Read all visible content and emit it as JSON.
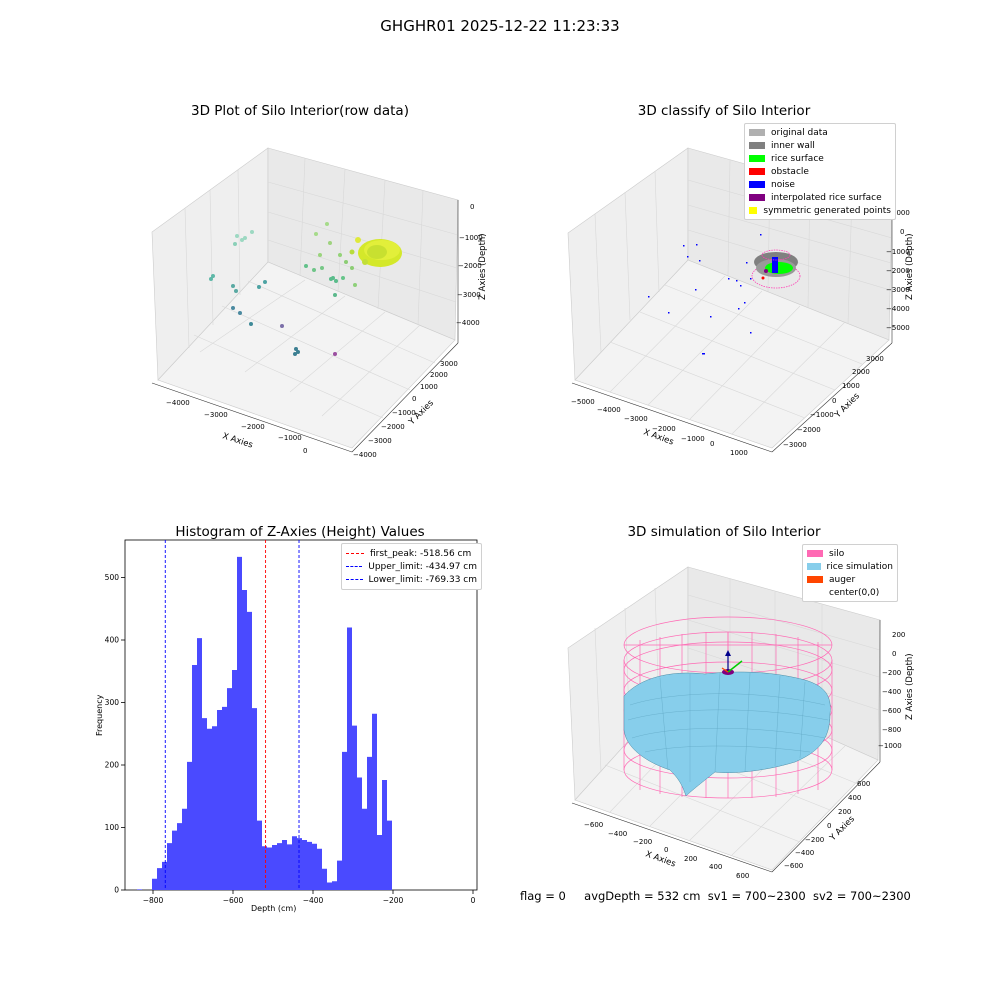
{
  "suptitle": "GHGHR01 2025-12-22 11:23:33",
  "plot1": {
    "title": "3D Plot of Silo Interior(row data)",
    "xlabel": "X Axies",
    "ylabel": "Y Axies",
    "zlabel": "Z Axies (Depth)",
    "xticks": [
      "−4000",
      "−3000",
      "−2000",
      "−1000",
      "0"
    ],
    "yticks": [
      "−4000",
      "−3000",
      "−2000",
      "−1000",
      "0",
      "1000",
      "2000",
      "3000"
    ],
    "zticks": [
      "0",
      "−1000",
      "−2000",
      "−3000",
      "−4000"
    ]
  },
  "plot2": {
    "title": "3D classify of Silo Interior",
    "xlabel": "X Axies",
    "ylabel": "Y Axies",
    "zlabel": "Z Axies (Depth)",
    "xticks": [
      "−5000",
      "−4000",
      "−3000",
      "−2000",
      "−1000",
      "0",
      "1000"
    ],
    "yticks": [
      "−3000",
      "−2000",
      "−1000",
      "0",
      "1000",
      "2000",
      "3000"
    ],
    "zticks": [
      "1000",
      "0",
      "−1000",
      "−2000",
      "−3000",
      "−4000",
      "−5000"
    ],
    "legend": [
      {
        "label": "original data",
        "color": "#b0b0b0"
      },
      {
        "label": "inner wall",
        "color": "#808080"
      },
      {
        "label": "rice surface",
        "color": "#00ff00"
      },
      {
        "label": "obstacle",
        "color": "#ff0000"
      },
      {
        "label": "noise",
        "color": "#0000ff"
      },
      {
        "label": "interpolated rice surface",
        "color": "#800080"
      },
      {
        "label": "symmetric generated points",
        "color": "#ffff00"
      }
    ]
  },
  "plot4": {
    "title": "3D simulation of Silo Interior",
    "xlabel": "X Axies",
    "ylabel": "Y Axies",
    "zlabel": "Z Axies (Depth)",
    "xticks": [
      "−600",
      "−400",
      "−200",
      "0",
      "200",
      "400",
      "600"
    ],
    "yticks": [
      "−600",
      "−400",
      "−200",
      "0",
      "200",
      "400",
      "600"
    ],
    "zticks": [
      "200",
      "0",
      "−200",
      "−400",
      "−600",
      "−800",
      "−1000"
    ],
    "legend": [
      {
        "label": "silo",
        "color": "#ff69b4"
      },
      {
        "label": "rice simulation",
        "color": "#87ceeb"
      },
      {
        "label": "auger",
        "color": "#ff4500"
      },
      {
        "label": "center(0,0)",
        "color": "#ffffff"
      }
    ]
  },
  "chart_data": [
    {
      "type": "histogram",
      "title": "Histogram of Z-Axies (Height) Values",
      "xlabel": "Depth (cm)",
      "ylabel": "Frequency",
      "xlim": [
        -870,
        10
      ],
      "ylim": [
        0,
        560
      ],
      "bin_start": -840,
      "bin_width": 12.5,
      "bar_color": "#4a4aff",
      "values": [
        1,
        0,
        0,
        18,
        35,
        45,
        75,
        95,
        107,
        130,
        205,
        360,
        403,
        275,
        258,
        262,
        288,
        293,
        323,
        352,
        533,
        480,
        445,
        291,
        111,
        70,
        68,
        72,
        75,
        80,
        73,
        86,
        83,
        80,
        77,
        74,
        66,
        34,
        12,
        14,
        47,
        221,
        420,
        263,
        180,
        130,
        213,
        282,
        88,
        176,
        111
      ],
      "xticks": [
        -800,
        -600,
        -400,
        -200,
        0
      ],
      "xtick_labels": [
        "−800",
        "−600",
        "−400",
        "−200",
        "0"
      ],
      "yticks": [
        0,
        100,
        200,
        300,
        400,
        500
      ],
      "vlines": [
        {
          "label": "first_peak: -518.56 cm",
          "x": -518.56,
          "color": "#ff0000"
        },
        {
          "label": "Upper_limit: -434.97 cm",
          "x": -434.97,
          "color": "#0000ff"
        },
        {
          "label": "Lower_limit: -769.33 cm",
          "x": -769.33,
          "color": "#0000ff"
        }
      ]
    }
  ],
  "footer": {
    "flag": "flag = 0",
    "avg_depth": "avgDepth = 532 cm",
    "sv1": "sv1 = 700~2300",
    "sv2": "sv2 = 700~2300"
  }
}
